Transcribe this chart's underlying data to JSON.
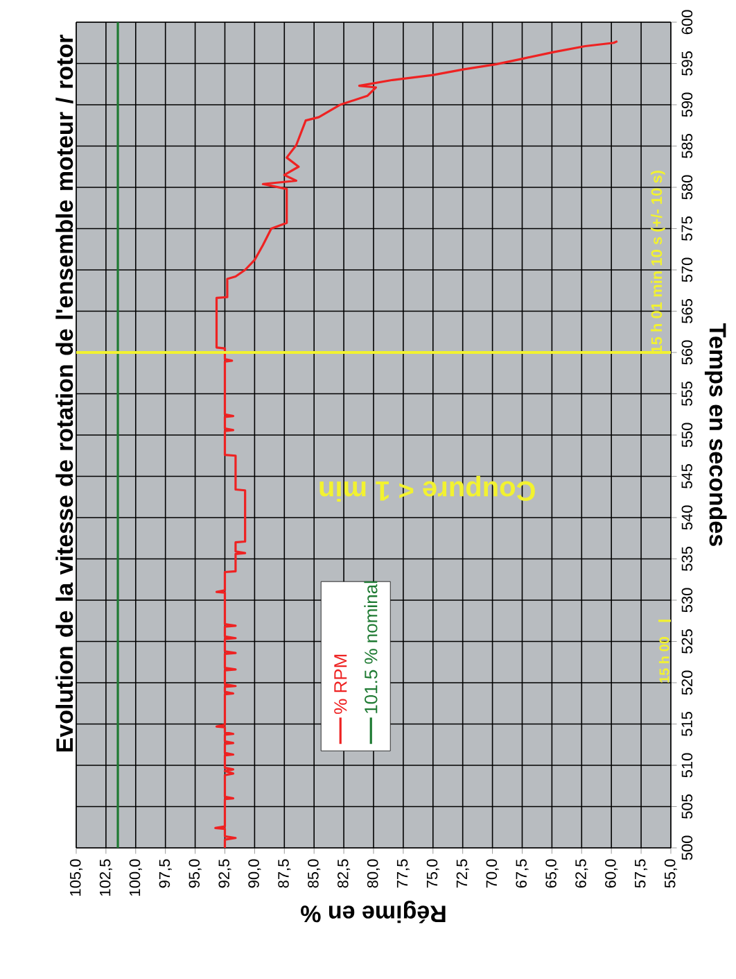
{
  "chart_data": {
    "type": "line",
    "title": "Evolution de la vitesse de rotation de l'ensemble moteur / rotor",
    "xlabel": "Régime en %",
    "ylabel": "Temps en secondes",
    "ylim": [
      500,
      600
    ],
    "yticks": [
      500,
      505,
      510,
      515,
      520,
      525,
      530,
      535,
      540,
      545,
      550,
      555,
      560,
      565,
      570,
      575,
      580,
      585,
      590,
      595,
      600
    ],
    "xlim": [
      105,
      55
    ],
    "xticks": [
      {
        "value": 55,
        "label": "55,0"
      },
      {
        "value": 57.5,
        "label": "57,5"
      },
      {
        "value": 60,
        "label": "60,0"
      },
      {
        "value": 62.5,
        "label": "62,5"
      },
      {
        "value": 65,
        "label": "65,0"
      },
      {
        "value": 67.5,
        "label": "67,5"
      },
      {
        "value": 70,
        "label": "70,0"
      },
      {
        "value": 72.5,
        "label": "72,5"
      },
      {
        "value": 75,
        "label": "75,0"
      },
      {
        "value": 77.5,
        "label": "77,5"
      },
      {
        "value": 80,
        "label": "80,0"
      },
      {
        "value": 82.5,
        "label": "82,5"
      },
      {
        "value": 85,
        "label": "85,0"
      },
      {
        "value": 87.5,
        "label": "87,5"
      },
      {
        "value": 90,
        "label": "90,0"
      },
      {
        "value": 92.5,
        "label": "92,5"
      },
      {
        "value": 95,
        "label": "95,0"
      },
      {
        "value": 97.5,
        "label": "97,5"
      },
      {
        "value": 100,
        "label": "100,0"
      },
      {
        "value": 102.5,
        "label": "102,5"
      },
      {
        "value": 105,
        "label": "105,0"
      }
    ],
    "grid": true,
    "legend": "bottom",
    "series": [
      {
        "name": "% RPM",
        "color": "#ee2222",
        "x": [
          92.5,
          92.5,
          91.6,
          92.5,
          92.5,
          93.3,
          92.5,
          92.5,
          91.8,
          92.5,
          92.5,
          91.8,
          92.5,
          91.8,
          92.5,
          92.5,
          91.8,
          92.5,
          92.5,
          91.8,
          92.5,
          92.5,
          91.8,
          92.5,
          92.5,
          93.2,
          92.5,
          92.5,
          91.8,
          92.5,
          92.5,
          91.6,
          92.5,
          92.5,
          91.6,
          92.5,
          92.5,
          91.6,
          92.5,
          92.5,
          91.6,
          92.5,
          92.5,
          91.6,
          92.5,
          92.5,
          93.2,
          92.5,
          92.5,
          91.6,
          91.6,
          90.8,
          91.6,
          91.6,
          90.8,
          90.8,
          91.6,
          91.6,
          92.5,
          92.5,
          91.8,
          92.5,
          92.5,
          91.8,
          92.5,
          92.5,
          91.9,
          92.5,
          92.5,
          93.2,
          93.2,
          92.3,
          92.3,
          91.6,
          90.8,
          90.0,
          89.3,
          88.6,
          87.3,
          87.3,
          89.3,
          86.5,
          87.5,
          86.3,
          87.3,
          86.5,
          85.7,
          84.6,
          82.8,
          80.5,
          79.8,
          81.2,
          78.4,
          75.0,
          72.4,
          69.7,
          67.4,
          64.8,
          62.2,
          59.8,
          59.5
        ],
        "values": [
          500,
          501.0,
          501.2,
          501.4,
          502.3,
          502.4,
          502.6,
          505.9,
          506.0,
          506.2,
          508.8,
          509.0,
          509.3,
          509.5,
          509.7,
          511.2,
          511.3,
          511.5,
          512.6,
          512.7,
          512.9,
          513.7,
          513.8,
          514.0,
          514.6,
          514.7,
          514.9,
          518.6,
          518.7,
          518.9,
          519.5,
          519.6,
          519.8,
          521.5,
          521.6,
          521.8,
          523.5,
          523.6,
          523.8,
          525.3,
          525.4,
          525.6,
          526.8,
          526.9,
          527.1,
          530.9,
          531.0,
          531.2,
          533.4,
          533.5,
          535.6,
          535.7,
          535.9,
          537.0,
          537.1,
          543.3,
          543.4,
          547.5,
          547.6,
          550.5,
          550.6,
          550.8,
          552.2,
          552.3,
          552.5,
          558.9,
          559.0,
          559.2,
          560.5,
          560.6,
          566.6,
          566.7,
          568.9,
          569.2,
          570.0,
          571.2,
          573.0,
          575.0,
          575.7,
          579.8,
          580.4,
          580.8,
          581.5,
          582.5,
          583.6,
          585.1,
          588.1,
          588.5,
          590.0,
          591.1,
          592.1,
          592.3,
          593.0,
          593.6,
          594.3,
          594.9,
          595.6,
          596.4,
          597.1,
          597.5,
          597.7
        ]
      },
      {
        "name": "101.5 % nominal",
        "color": "#1e7a32",
        "x": [
          101.5,
          101.5
        ],
        "values": [
          500,
          600
        ]
      }
    ],
    "ref_lines": [
      {
        "axis": "y",
        "value": 560,
        "label": "15 h 01 min 10 s (+/- 10 s)",
        "color": "#f2f230"
      },
      {
        "axis": "y",
        "value": 527.5,
        "label": "15 h 00",
        "color": "#f2f230"
      }
    ],
    "annotations": [
      "Coupure < 1 min"
    ]
  }
}
